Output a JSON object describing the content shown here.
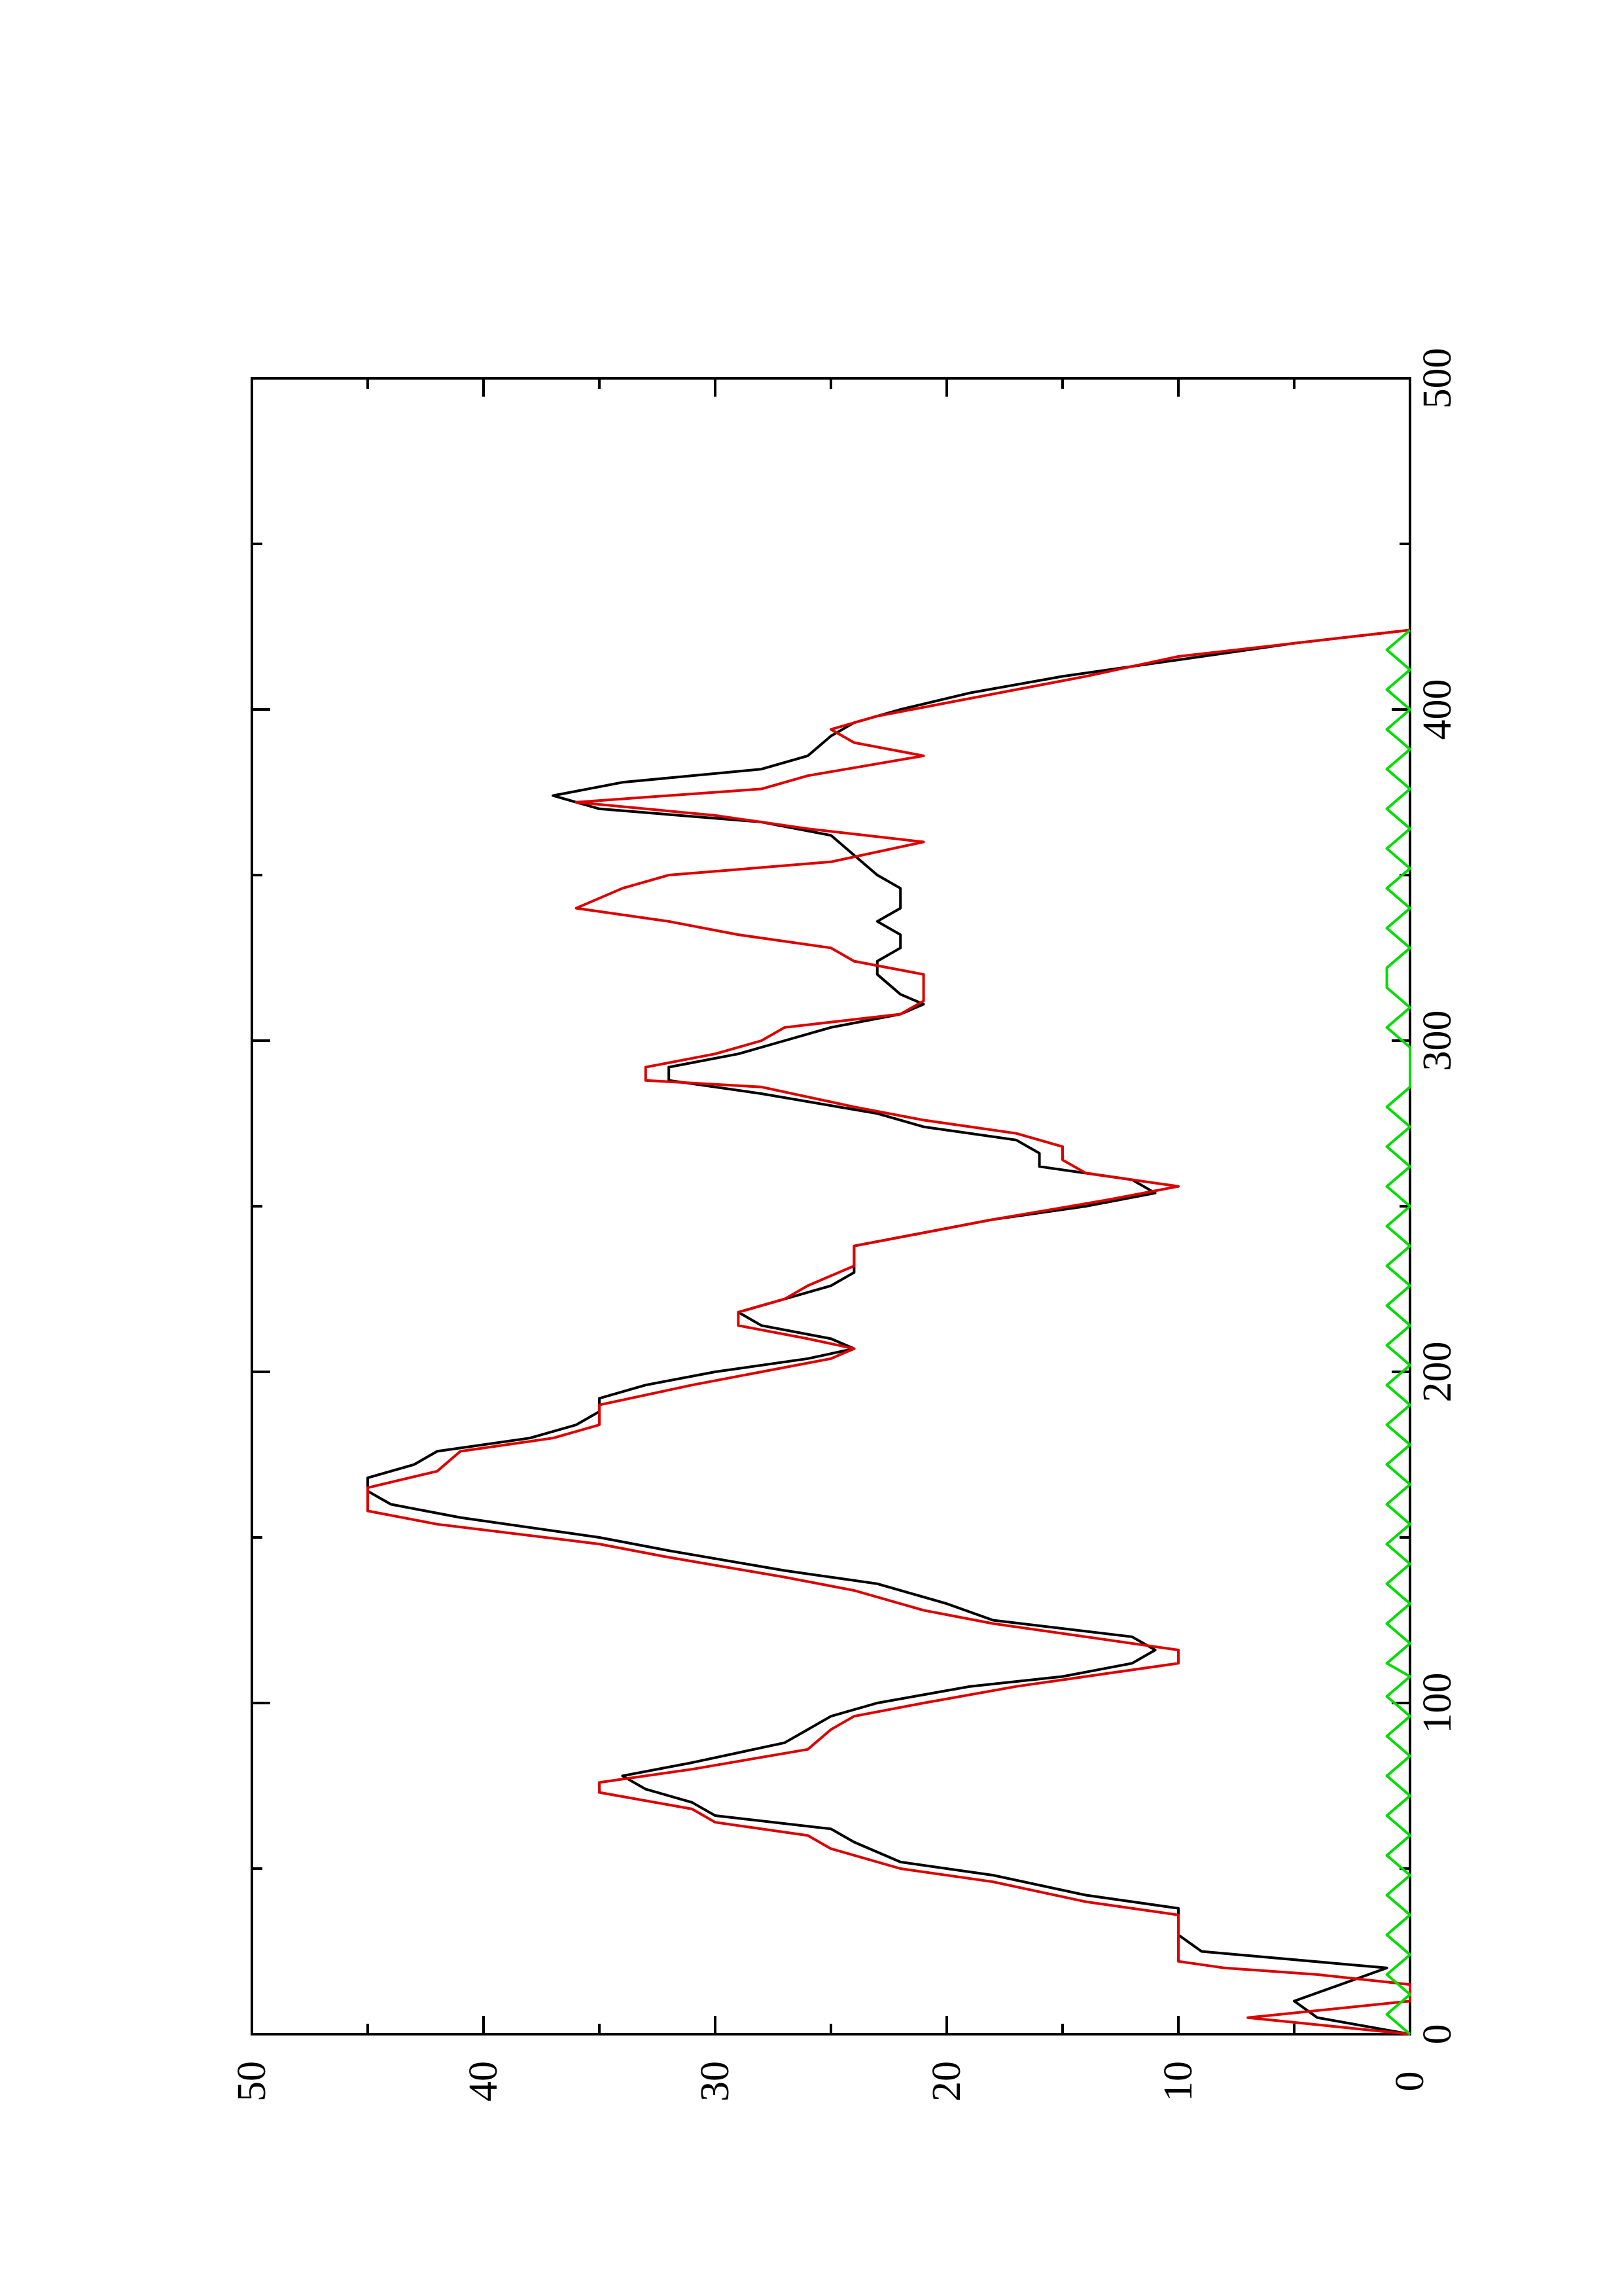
{
  "chart_data": {
    "type": "line",
    "title": "",
    "xlabel": "",
    "ylabel": "",
    "xlim": [
      0,
      500
    ],
    "ylim": [
      0,
      50
    ],
    "x_ticks": [
      0,
      100,
      200,
      300,
      400,
      500
    ],
    "x_minor_ticks": [
      50,
      150,
      250,
      350,
      450
    ],
    "y_ticks": [
      0,
      10,
      20,
      30,
      40,
      50
    ],
    "y_minor_ticks": [
      5,
      15,
      25,
      35,
      45
    ],
    "grid": false,
    "legend": "none",
    "orientation": "rotated 90 degrees counter-clockwise on the page",
    "series": [
      {
        "color": "#000000",
        "points": [
          [
            0,
            0
          ],
          [
            5,
            4
          ],
          [
            10,
            5
          ],
          [
            15,
            3
          ],
          [
            20,
            1
          ],
          [
            25,
            9
          ],
          [
            30,
            10
          ],
          [
            38,
            10
          ],
          [
            42,
            14
          ],
          [
            48,
            18
          ],
          [
            52,
            22
          ],
          [
            58,
            24
          ],
          [
            62,
            25
          ],
          [
            66,
            30
          ],
          [
            70,
            31
          ],
          [
            74,
            33
          ],
          [
            78,
            34
          ],
          [
            82,
            31
          ],
          [
            88,
            27
          ],
          [
            92,
            26
          ],
          [
            96,
            25
          ],
          [
            100,
            23
          ],
          [
            105,
            19
          ],
          [
            108,
            15
          ],
          [
            112,
            12
          ],
          [
            116,
            11
          ],
          [
            120,
            12
          ],
          [
            125,
            18
          ],
          [
            130,
            20
          ],
          [
            136,
            23
          ],
          [
            140,
            27
          ],
          [
            146,
            32
          ],
          [
            150,
            35
          ],
          [
            156,
            41
          ],
          [
            160,
            44
          ],
          [
            164,
            45
          ],
          [
            168,
            45
          ],
          [
            172,
            43
          ],
          [
            176,
            42
          ],
          [
            180,
            38
          ],
          [
            184,
            36
          ],
          [
            188,
            35
          ],
          [
            192,
            35
          ],
          [
            196,
            33
          ],
          [
            200,
            30
          ],
          [
            204,
            26
          ],
          [
            207,
            24
          ],
          [
            210,
            25
          ],
          [
            214,
            28
          ],
          [
            218,
            29
          ],
          [
            222,
            27
          ],
          [
            226,
            25
          ],
          [
            230,
            24
          ],
          [
            238,
            24
          ],
          [
            242,
            21
          ],
          [
            246,
            18
          ],
          [
            250,
            14
          ],
          [
            254,
            11
          ],
          [
            258,
            12
          ],
          [
            262,
            16
          ],
          [
            266,
            16
          ],
          [
            270,
            17
          ],
          [
            274,
            21
          ],
          [
            278,
            23
          ],
          [
            284,
            28
          ],
          [
            288,
            32
          ],
          [
            292,
            32
          ],
          [
            296,
            29
          ],
          [
            300,
            27
          ],
          [
            304,
            25
          ],
          [
            308,
            22
          ],
          [
            311,
            21
          ],
          [
            314,
            22
          ],
          [
            320,
            23
          ],
          [
            324,
            23
          ],
          [
            328,
            22
          ],
          [
            332,
            22
          ],
          [
            336,
            23
          ],
          [
            340,
            22
          ],
          [
            346,
            22
          ],
          [
            350,
            23
          ],
          [
            356,
            24
          ],
          [
            362,
            25
          ],
          [
            366,
            28
          ],
          [
            370,
            35
          ],
          [
            374,
            37
          ],
          [
            378,
            34
          ],
          [
            382,
            28
          ],
          [
            386,
            26
          ],
          [
            392,
            25
          ],
          [
            396,
            24
          ],
          [
            400,
            22
          ],
          [
            405,
            19
          ],
          [
            410,
            15
          ],
          [
            415,
            10
          ],
          [
            420,
            5
          ],
          [
            424,
            0
          ]
        ]
      },
      {
        "color": "#dd0000",
        "points": [
          [
            0,
            0
          ],
          [
            5,
            7
          ],
          [
            10,
            0
          ],
          [
            15,
            0
          ],
          [
            18,
            4
          ],
          [
            20,
            8
          ],
          [
            22,
            10
          ],
          [
            36,
            10
          ],
          [
            40,
            14
          ],
          [
            46,
            18
          ],
          [
            50,
            22
          ],
          [
            56,
            25
          ],
          [
            60,
            26
          ],
          [
            64,
            30
          ],
          [
            68,
            31
          ],
          [
            73,
            35
          ],
          [
            76,
            35
          ],
          [
            80,
            31
          ],
          [
            86,
            26
          ],
          [
            92,
            25
          ],
          [
            96,
            24
          ],
          [
            100,
            21
          ],
          [
            105,
            17
          ],
          [
            108,
            14
          ],
          [
            112,
            10
          ],
          [
            116,
            10
          ],
          [
            120,
            14
          ],
          [
            124,
            18
          ],
          [
            128,
            21
          ],
          [
            134,
            24
          ],
          [
            138,
            27
          ],
          [
            144,
            32
          ],
          [
            148,
            35
          ],
          [
            154,
            42
          ],
          [
            158,
            45
          ],
          [
            165,
            45
          ],
          [
            170,
            42
          ],
          [
            176,
            41
          ],
          [
            180,
            37
          ],
          [
            184,
            35
          ],
          [
            190,
            35
          ],
          [
            196,
            31
          ],
          [
            200,
            28
          ],
          [
            204,
            25
          ],
          [
            207,
            24
          ],
          [
            210,
            26
          ],
          [
            214,
            29
          ],
          [
            218,
            29
          ],
          [
            222,
            27
          ],
          [
            226,
            26
          ],
          [
            232,
            24
          ],
          [
            238,
            24
          ],
          [
            242,
            21
          ],
          [
            246,
            18
          ],
          [
            252,
            13
          ],
          [
            256,
            10
          ],
          [
            260,
            14
          ],
          [
            264,
            15
          ],
          [
            268,
            15
          ],
          [
            272,
            17
          ],
          [
            276,
            21
          ],
          [
            280,
            24
          ],
          [
            286,
            28
          ],
          [
            288,
            33
          ],
          [
            292,
            33
          ],
          [
            296,
            30
          ],
          [
            300,
            28
          ],
          [
            304,
            27
          ],
          [
            308,
            22
          ],
          [
            312,
            21
          ],
          [
            320,
            21
          ],
          [
            324,
            24
          ],
          [
            328,
            25
          ],
          [
            332,
            29
          ],
          [
            336,
            32
          ],
          [
            340,
            36
          ],
          [
            346,
            34
          ],
          [
            350,
            32
          ],
          [
            354,
            25
          ],
          [
            360,
            21
          ],
          [
            364,
            26
          ],
          [
            368,
            30
          ],
          [
            372,
            36
          ],
          [
            376,
            28
          ],
          [
            380,
            26
          ],
          [
            386,
            21
          ],
          [
            390,
            24
          ],
          [
            394,
            25
          ],
          [
            398,
            23
          ],
          [
            402,
            20
          ],
          [
            406,
            17
          ],
          [
            410,
            14
          ],
          [
            416,
            10
          ],
          [
            420,
            5
          ],
          [
            424,
            0
          ]
        ]
      },
      {
        "color": "#00dd00",
        "points": [
          [
            0,
            0
          ],
          [
            6,
            1
          ],
          [
            12,
            0
          ],
          [
            18,
            1
          ],
          [
            24,
            0
          ],
          [
            30,
            1
          ],
          [
            36,
            0
          ],
          [
            42,
            1
          ],
          [
            48,
            0
          ],
          [
            54,
            1
          ],
          [
            60,
            0
          ],
          [
            66,
            1
          ],
          [
            72,
            0
          ],
          [
            78,
            1
          ],
          [
            84,
            0
          ],
          [
            90,
            1
          ],
          [
            96,
            0
          ],
          [
            102,
            1
          ],
          [
            108,
            0
          ],
          [
            112,
            1
          ],
          [
            118,
            0
          ],
          [
            124,
            1
          ],
          [
            130,
            0
          ],
          [
            136,
            1
          ],
          [
            142,
            0
          ],
          [
            148,
            1
          ],
          [
            154,
            0
          ],
          [
            160,
            1
          ],
          [
            166,
            0
          ],
          [
            172,
            1
          ],
          [
            178,
            0
          ],
          [
            184,
            1
          ],
          [
            190,
            0
          ],
          [
            196,
            1
          ],
          [
            202,
            0
          ],
          [
            208,
            1
          ],
          [
            214,
            0
          ],
          [
            220,
            1
          ],
          [
            226,
            0
          ],
          [
            232,
            1
          ],
          [
            238,
            0
          ],
          [
            244,
            1
          ],
          [
            250,
            0
          ],
          [
            256,
            1
          ],
          [
            262,
            0
          ],
          [
            268,
            1
          ],
          [
            274,
            0
          ],
          [
            280,
            1
          ],
          [
            286,
            0
          ],
          [
            292,
            0
          ],
          [
            298,
            0
          ],
          [
            304,
            1
          ],
          [
            310,
            0
          ],
          [
            316,
            1
          ],
          [
            322,
            1
          ],
          [
            328,
            0
          ],
          [
            334,
            1
          ],
          [
            340,
            0
          ],
          [
            346,
            1
          ],
          [
            352,
            0
          ],
          [
            358,
            1
          ],
          [
            364,
            0
          ],
          [
            370,
            1
          ],
          [
            376,
            0
          ],
          [
            382,
            1
          ],
          [
            388,
            0
          ],
          [
            394,
            1
          ],
          [
            400,
            0
          ],
          [
            406,
            1
          ],
          [
            412,
            0
          ],
          [
            418,
            1
          ],
          [
            424,
            0
          ]
        ]
      }
    ]
  }
}
